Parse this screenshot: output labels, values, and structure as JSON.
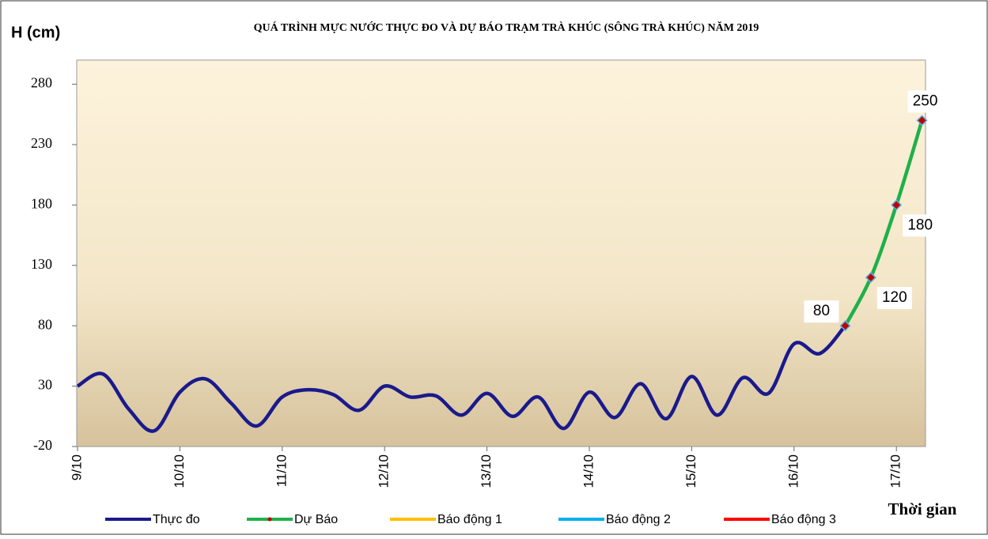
{
  "chart_data": {
    "type": "line",
    "title": "QUÁ TRÌNH MỰC NƯỚC THỰC ĐO VÀ DỰ BÁO TRẠM TRÀ KHÚC (SÔNG TRÀ KHÚC) NĂM 2019",
    "y_label": "H (cm)",
    "x_label": "Thời gian",
    "categories": [
      "9/10",
      null,
      null,
      null,
      "10/10",
      null,
      null,
      null,
      "11/10",
      null,
      null,
      null,
      "12/10",
      null,
      null,
      null,
      "13/10",
      null,
      null,
      null,
      "14/10",
      null,
      null,
      null,
      "15/10",
      null,
      null,
      null,
      "16/10",
      null,
      null,
      null,
      "17/10",
      null,
      null
    ],
    "series": [
      {
        "name": "Thực đo",
        "color": "#1a1a8c",
        "values": [
          30,
          40,
          11,
          -7,
          25,
          36,
          16,
          -3,
          21,
          27,
          23,
          10,
          30,
          21,
          22,
          6,
          24,
          5,
          21,
          -5,
          25,
          4,
          32,
          3,
          38,
          6,
          37,
          24,
          65,
          57,
          80,
          null,
          null,
          null,
          null
        ]
      },
      {
        "name": "Dự Báo",
        "color": "#1fb04a",
        "marker": true,
        "values": [
          null,
          null,
          null,
          null,
          null,
          null,
          null,
          null,
          null,
          null,
          null,
          null,
          null,
          null,
          null,
          null,
          null,
          null,
          null,
          null,
          null,
          null,
          null,
          null,
          null,
          null,
          null,
          null,
          null,
          null,
          80,
          120,
          180,
          250,
          null
        ]
      },
      {
        "name": "Báo động 1",
        "color": "#ffc000",
        "values": [
          null,
          null,
          null,
          null,
          null,
          null,
          null,
          null,
          null,
          null,
          null,
          null,
          null,
          null,
          null,
          null,
          null,
          null,
          null,
          null,
          null,
          null,
          null,
          null,
          null,
          null,
          null,
          null,
          null,
          null,
          null,
          null,
          null,
          null,
          null
        ]
      },
      {
        "name": "Báo động 2",
        "color": "#00b0f0",
        "values": [
          null,
          null,
          null,
          null,
          null,
          null,
          null,
          null,
          null,
          null,
          null,
          null,
          null,
          null,
          null,
          null,
          null,
          null,
          null,
          null,
          null,
          null,
          null,
          null,
          null,
          null,
          null,
          null,
          null,
          null,
          null,
          null,
          null,
          null,
          null
        ]
      },
      {
        "name": "Báo động 3",
        "color": "#ff0000",
        "values": [
          null,
          null,
          null,
          null,
          null,
          null,
          null,
          null,
          null,
          null,
          null,
          null,
          null,
          null,
          null,
          null,
          null,
          null,
          null,
          null,
          null,
          null,
          null,
          null,
          null,
          null,
          null,
          null,
          null,
          null,
          null,
          null,
          null,
          null,
          null
        ]
      }
    ],
    "ylim": [
      -20,
      300
    ],
    "yticks": [
      -20,
      30,
      80,
      130,
      180,
      230,
      280
    ]
  }
}
